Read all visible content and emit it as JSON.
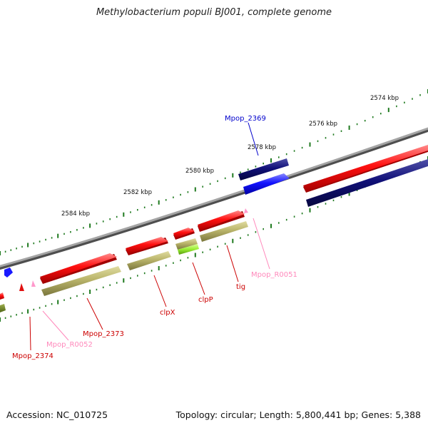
{
  "title": "Methylobacterium populi BJ001, complete genome",
  "footer": {
    "accession": "Accession: NC_010725",
    "summary": "Topology: circular; Length: 5,800,441 bp; Genes: 5,388"
  },
  "scale_labels": [
    "2574 kbp",
    "2576 kbp",
    "2578 kbp",
    "2580 kbp",
    "2582 kbp",
    "2584 kbp"
  ],
  "feature_labels": {
    "mpop_2369": "Mpop_2369",
    "mpop_r0051": "Mpop_R0051",
    "tig": "tig",
    "clpp": "clpP",
    "clpx": "clpX",
    "mpop_2373": "Mpop_2373",
    "mpop_r0052": "Mpop_R0052",
    "mpop_2374": "Mpop_2374"
  },
  "colors": {
    "backbone": "#8a8a8a",
    "forward_cds": "#ff1a1a",
    "forward_gene": "#b8b46a",
    "reverse_cds": "#1a1aff",
    "reverse_gene": "#10107a",
    "trna": "#ff99cc",
    "rrna": "#99ee33",
    "ticks": "#1f7a1f",
    "label_red": "#cc0000",
    "label_blue": "#0000cc",
    "label_pink": "#ff88bb"
  }
}
